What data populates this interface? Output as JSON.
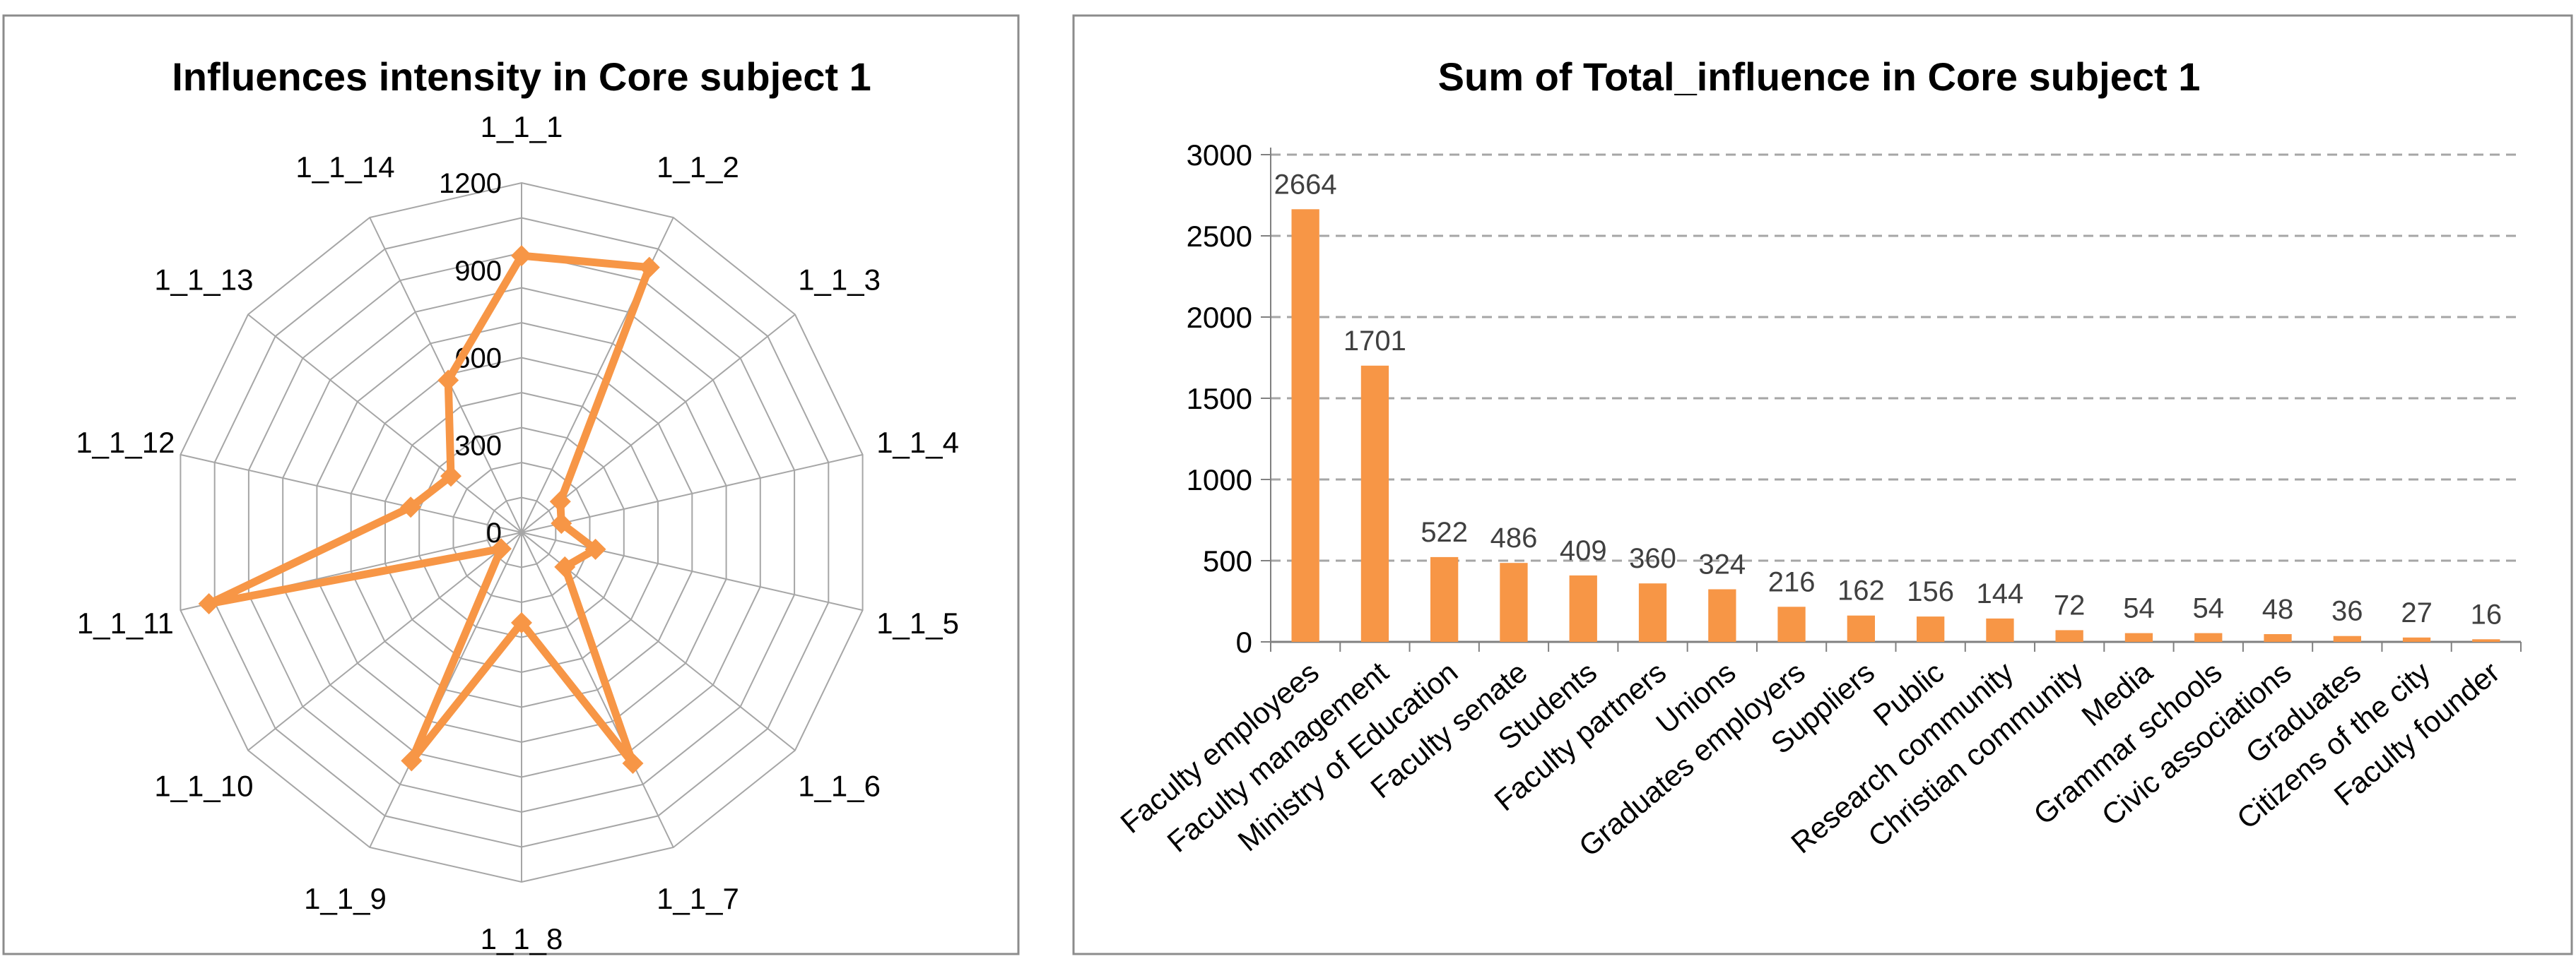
{
  "colors": {
    "series": "#F79646",
    "grid": "#A6A6A6",
    "axis": "#808080",
    "border": "#8C8C8C",
    "text": "#000000",
    "label_text": "#404040"
  },
  "chart_data": [
    {
      "type": "radar",
      "title": "Influences intensity in Core subject 1",
      "categories": [
        "1_1_1",
        "1_1_2",
        "1_1_3",
        "1_1_4",
        "1_1_5",
        "1_1_6",
        "1_1_7",
        "1_1_8",
        "1_1_9",
        "1_1_10",
        "1_1_11",
        "1_1_12",
        "1_1_13",
        "1_1_14"
      ],
      "values": [
        950,
        1010,
        170,
        140,
        260,
        190,
        880,
        310,
        870,
        90,
        1100,
        390,
        310,
        580
      ],
      "rlim": [
        0,
        1200
      ],
      "ticks": [
        0,
        300,
        600,
        900,
        1200
      ],
      "marker": "diamond",
      "legend": "none"
    },
    {
      "type": "bar",
      "title": "Sum of Total_influence in Core subject 1",
      "categories": [
        "Faculty employees",
        "Faculty management",
        "Ministry of Education",
        "Faculty senate",
        "Students",
        "Faculty partners",
        "Unions",
        "Graduates employers",
        "Suppliers",
        "Public",
        "Research community",
        "Christian community",
        "Media",
        "Grammar schools",
        "Civic associations",
        "Graduates",
        "Citizens of the city",
        "Faculty founder"
      ],
      "values": [
        2664,
        1701,
        522,
        486,
        409,
        360,
        324,
        216,
        162,
        156,
        144,
        72,
        54,
        54,
        48,
        36,
        27,
        16
      ],
      "ylim": [
        0,
        3000
      ],
      "ticks": [
        0,
        500,
        1000,
        1500,
        2000,
        2500,
        3000
      ],
      "grid": "dashed horizontal",
      "legend": "none"
    }
  ]
}
